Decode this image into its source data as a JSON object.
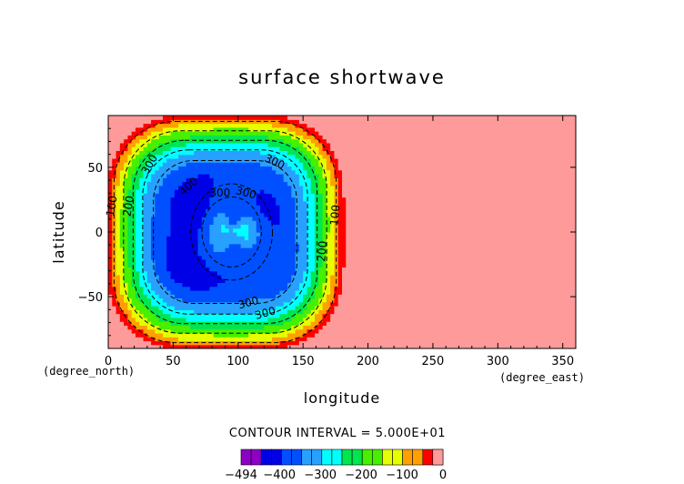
{
  "chart_data": {
    "type": "heatmap",
    "title": "surface shortwave",
    "xlabel": "longitude",
    "ylabel": "latitude",
    "x_unit": "(degree_east)",
    "y_unit": "(degree_north)",
    "xlim": [
      0,
      360
    ],
    "ylim": [
      -90,
      90
    ],
    "x_ticks": [
      0,
      50,
      100,
      150,
      200,
      250,
      300,
      350
    ],
    "y_ticks": [
      -50,
      0,
      50
    ],
    "contour_interval_text": "CONTOUR INTERVAL = 5.000E+01",
    "contour_interval": 50,
    "contour_labels": [
      {
        "text": "100",
        "lon": 3,
        "lat": 20,
        "angle": -80
      },
      {
        "text": "200",
        "lon": 16,
        "lat": 20,
        "angle": -80
      },
      {
        "text": "300",
        "lon": 32,
        "lat": 52,
        "angle": -60
      },
      {
        "text": "400",
        "lon": 62,
        "lat": 35,
        "angle": -40
      },
      {
        "text": "300",
        "lon": 86,
        "lat": 30,
        "angle": 0
      },
      {
        "text": "300",
        "lon": 106,
        "lat": 30,
        "angle": 15
      },
      {
        "text": "300",
        "lon": 128,
        "lat": 54,
        "angle": 25
      },
      {
        "text": "200",
        "lon": 165,
        "lat": -15,
        "angle": -85
      },
      {
        "text": "100",
        "lon": 175,
        "lat": 13,
        "angle": -85
      },
      {
        "text": "300",
        "lon": 108,
        "lat": -55,
        "angle": -15
      },
      {
        "text": "300",
        "lon": 121,
        "lat": -63,
        "angle": -15
      }
    ],
    "field": {
      "description_region": "negative values (W/m2) over lon 0-180, zero elsewhere",
      "region_lon": [
        0,
        180
      ],
      "vortex_center": {
        "lon": 95,
        "lat": 0
      },
      "min": -494,
      "max": 0
    },
    "colorbar": {
      "levels": [
        -494,
        -450,
        -400,
        -350,
        -300,
        -250,
        -200,
        -150,
        -100,
        -50,
        0
      ],
      "tick_labels": [
        "-494",
        "-400",
        "-300",
        "-200",
        "-100",
        "0"
      ],
      "tick_values": [
        -494,
        -400,
        -300,
        -200,
        -100,
        0
      ],
      "colors": [
        "#8e00c6",
        "#0000e6",
        "#0050ff",
        "#28a0ff",
        "#00ffff",
        "#00e650",
        "#46f000",
        "#e6ff00",
        "#ffa000",
        "#ff0000",
        "#ff9a9a"
      ]
    },
    "grid": false
  }
}
